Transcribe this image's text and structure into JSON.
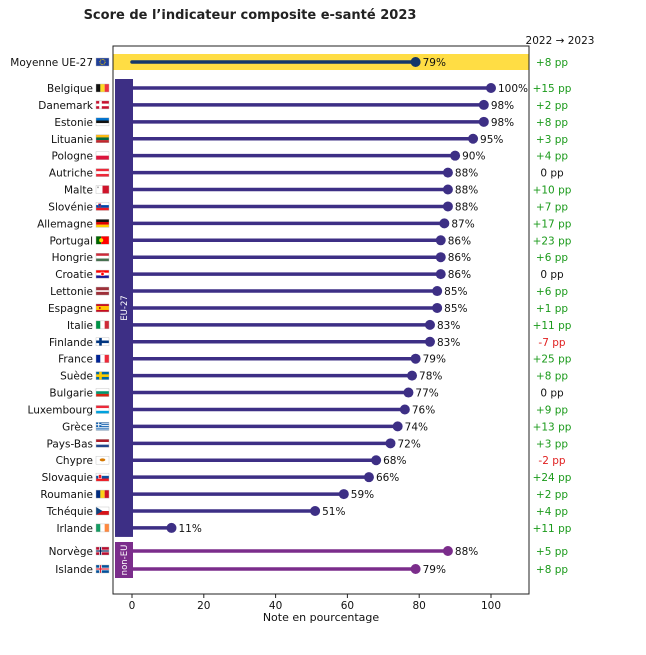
{
  "chart_data": {
    "type": "lollipop",
    "title": "Score de l’indicateur composite e-santé 2023",
    "xlabel": "Note en pourcentage",
    "xlim": [
      -5,
      110
    ],
    "xticks": [
      0,
      20,
      40,
      60,
      80,
      100
    ],
    "change_header": "2022 → 2023",
    "groups": {
      "eu": "EU-27",
      "noneu": "non-EU"
    },
    "colors": {
      "eu": "#3d2f85",
      "noneu": "#7b2d8b",
      "average_line": "#14366a",
      "average_band": "#ffdd44",
      "positive": "#1a9a1a",
      "negative": "#e02020",
      "neutral": "#111111"
    },
    "average": {
      "label": "Moyenne UE-27",
      "value": 79,
      "value_label": "79%",
      "change": "+8 pp",
      "flag": "eu-flag-icon"
    },
    "countries": [
      {
        "label": "Belgique",
        "value": 100,
        "value_label": "100%",
        "change": "+15 pp",
        "group": "eu",
        "flag": "belgium-flag-icon"
      },
      {
        "label": "Danemark",
        "value": 98,
        "value_label": "98%",
        "change": "+2 pp",
        "group": "eu",
        "flag": "denmark-flag-icon"
      },
      {
        "label": "Estonie",
        "value": 98,
        "value_label": "98%",
        "change": "+8 pp",
        "group": "eu",
        "flag": "estonia-flag-icon"
      },
      {
        "label": "Lituanie",
        "value": 95,
        "value_label": "95%",
        "change": "+3 pp",
        "group": "eu",
        "flag": "lithuania-flag-icon"
      },
      {
        "label": "Pologne",
        "value": 90,
        "value_label": "90%",
        "change": "+4 pp",
        "group": "eu",
        "flag": "poland-flag-icon"
      },
      {
        "label": "Autriche",
        "value": 88,
        "value_label": "88%",
        "change": "0 pp",
        "group": "eu",
        "flag": "austria-flag-icon"
      },
      {
        "label": "Malte",
        "value": 88,
        "value_label": "88%",
        "change": "+10 pp",
        "group": "eu",
        "flag": "malta-flag-icon"
      },
      {
        "label": "Slovénie",
        "value": 88,
        "value_label": "88%",
        "change": "+7 pp",
        "group": "eu",
        "flag": "slovenia-flag-icon"
      },
      {
        "label": "Allemagne",
        "value": 87,
        "value_label": "87%",
        "change": "+17 pp",
        "group": "eu",
        "flag": "germany-flag-icon"
      },
      {
        "label": "Portugal",
        "value": 86,
        "value_label": "86%",
        "change": "+23 pp",
        "group": "eu",
        "flag": "portugal-flag-icon"
      },
      {
        "label": "Hongrie",
        "value": 86,
        "value_label": "86%",
        "change": "+6 pp",
        "group": "eu",
        "flag": "hungary-flag-icon"
      },
      {
        "label": "Croatie",
        "value": 86,
        "value_label": "86%",
        "change": "0 pp",
        "group": "eu",
        "flag": "croatia-flag-icon"
      },
      {
        "label": "Lettonie",
        "value": 85,
        "value_label": "85%",
        "change": "+6 pp",
        "group": "eu",
        "flag": "latvia-flag-icon"
      },
      {
        "label": "Espagne",
        "value": 85,
        "value_label": "85%",
        "change": "+1 pp",
        "group": "eu",
        "flag": "spain-flag-icon"
      },
      {
        "label": "Italie",
        "value": 83,
        "value_label": "83%",
        "change": "+11 pp",
        "group": "eu",
        "flag": "italy-flag-icon"
      },
      {
        "label": "Finlande",
        "value": 83,
        "value_label": "83%",
        "change": "-7 pp",
        "group": "eu",
        "flag": "finland-flag-icon"
      },
      {
        "label": "France",
        "value": 79,
        "value_label": "79%",
        "change": "+25 pp",
        "group": "eu",
        "flag": "france-flag-icon"
      },
      {
        "label": "Suède",
        "value": 78,
        "value_label": "78%",
        "change": "+8 pp",
        "group": "eu",
        "flag": "sweden-flag-icon"
      },
      {
        "label": "Bulgarie",
        "value": 77,
        "value_label": "77%",
        "change": "0 pp",
        "group": "eu",
        "flag": "bulgaria-flag-icon"
      },
      {
        "label": "Luxembourg",
        "value": 76,
        "value_label": "76%",
        "change": "+9 pp",
        "group": "eu",
        "flag": "luxembourg-flag-icon"
      },
      {
        "label": "Grèce",
        "value": 74,
        "value_label": "74%",
        "change": "+13 pp",
        "group": "eu",
        "flag": "greece-flag-icon"
      },
      {
        "label": "Pays-Bas",
        "value": 72,
        "value_label": "72%",
        "change": "+3 pp",
        "group": "eu",
        "flag": "netherlands-flag-icon"
      },
      {
        "label": "Chypre",
        "value": 68,
        "value_label": "68%",
        "change": "-2 pp",
        "group": "eu",
        "flag": "cyprus-flag-icon"
      },
      {
        "label": "Slovaquie",
        "value": 66,
        "value_label": "66%",
        "change": "+24 pp",
        "group": "eu",
        "flag": "slovakia-flag-icon"
      },
      {
        "label": "Roumanie",
        "value": 59,
        "value_label": "59%",
        "change": "+2 pp",
        "group": "eu",
        "flag": "romania-flag-icon"
      },
      {
        "label": "Tchéquie",
        "value": 51,
        "value_label": "51%",
        "change": "+4 pp",
        "group": "eu",
        "flag": "czechia-flag-icon"
      },
      {
        "label": "Irlande",
        "value": 11,
        "value_label": "11%",
        "change": "+11 pp",
        "group": "eu",
        "flag": "ireland-flag-icon"
      },
      {
        "label": "Norvège",
        "value": 88,
        "value_label": "88%",
        "change": "+5 pp",
        "group": "noneu",
        "flag": "norway-flag-icon"
      },
      {
        "label": "Islande",
        "value": 79,
        "value_label": "79%",
        "change": "+8 pp",
        "group": "noneu",
        "flag": "iceland-flag-icon"
      }
    ]
  }
}
